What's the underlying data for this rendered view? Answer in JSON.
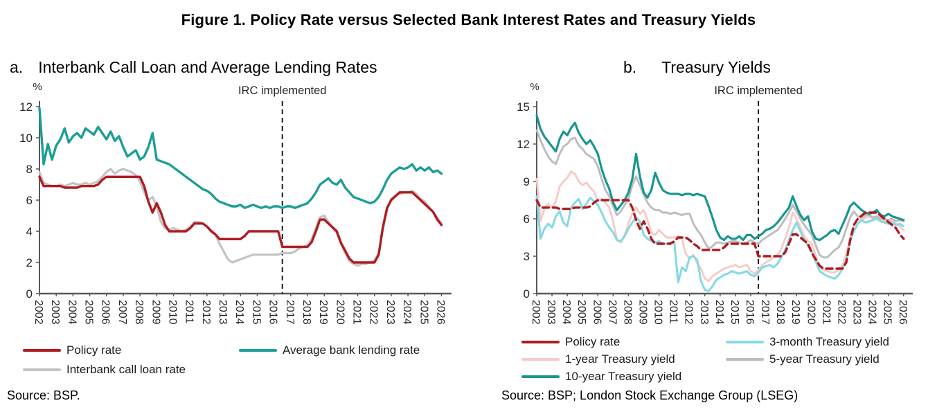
{
  "figure_title": "Figure 1. Policy Rate versus Selected Bank Interest Rates and Treasury Yields",
  "panel_a": {
    "index_label": "a.",
    "heading": "Interbank Call Loan and Average Lending Rates",
    "source": "Source: BSP."
  },
  "panel_b": {
    "index_label": "b.",
    "heading": "Treasury Yields",
    "source": "Source: BSP; London Stock Exchange Group (LSEG)"
  },
  "colors": {
    "policy_rate": "#B01C20",
    "avg_bank_lending": "#1C9E96",
    "interbank_call_loan": "#C3C3C3",
    "treasury_3m": "#84D9E2",
    "treasury_1y": "#F6CBC8",
    "treasury_5y": "#BDBDBD",
    "treasury_10y": "#189690",
    "irc_line": "#1A1A1A",
    "axis": "#595959"
  },
  "chart_data": [
    {
      "type": "line",
      "panel": "a",
      "title": "Interbank Call Loan and Average Lending Rates",
      "xlabel": "",
      "ylabel": "%",
      "percent_label": "%",
      "annotation": {
        "label": "IRC implemented",
        "x": 2016.5
      },
      "x_unit": "year",
      "x_start": 2002,
      "x_step": 0.25,
      "xlim": [
        2002,
        2026.6
      ],
      "ylim": [
        0,
        12
      ],
      "yticks": [
        0,
        2,
        4,
        6,
        8,
        10,
        12
      ],
      "xticks": [
        2002,
        2003,
        2004,
        2005,
        2006,
        2007,
        2008,
        2009,
        2010,
        2011,
        2012,
        2013,
        2014,
        2015,
        2016,
        2017,
        2018,
        2019,
        2020,
        2021,
        2022,
        2023,
        2024,
        2025,
        2026
      ],
      "grid": false,
      "legend_position": "bottom",
      "legend_columns": [
        [
          "Policy rate",
          "Interbank call loan rate"
        ],
        [
          "Average bank lending rate"
        ]
      ],
      "series": [
        {
          "name": "Interbank call loan rate",
          "color": "#C3C3C3",
          "width": 3.2,
          "values": [
            7.8,
            7.1,
            7.0,
            6.9,
            6.9,
            7.0,
            6.9,
            7.0,
            7.1,
            7.0,
            7.0,
            7.1,
            7.0,
            7.1,
            7.2,
            7.5,
            7.8,
            8.0,
            7.7,
            7.9,
            8.0,
            7.9,
            7.8,
            7.6,
            7.2,
            6.5,
            6.0,
            6.2,
            5.6,
            4.6,
            4.2,
            4.1,
            4.2,
            4.1,
            4.0,
            4.1,
            4.3,
            4.6,
            4.6,
            4.5,
            4.3,
            4.1,
            3.8,
            3.2,
            2.7,
            2.2,
            2.0,
            2.1,
            2.2,
            2.3,
            2.4,
            2.5,
            2.5,
            2.5,
            2.5,
            2.5,
            2.5,
            2.5,
            2.6,
            2.6,
            2.6,
            2.7,
            2.9,
            3.0,
            3.1,
            3.5,
            4.2,
            4.9,
            5.0,
            4.6,
            4.2,
            3.9,
            3.2,
            2.6,
            2.1,
            1.9,
            1.8,
            1.9,
            1.9,
            2.0,
            2.1,
            2.6,
            4.1,
            5.4,
            6.1,
            6.3,
            6.4,
            6.5,
            6.5,
            6.6,
            6.4,
            6.1,
            5.9,
            5.6,
            5.2,
            4.9,
            4.5
          ]
        },
        {
          "name": "Policy rate",
          "color": "#B01C20",
          "width": 3.4,
          "values": [
            7.5,
            6.9,
            6.9,
            6.9,
            6.9,
            6.9,
            6.8,
            6.8,
            6.8,
            6.8,
            6.9,
            6.9,
            6.9,
            6.9,
            7.0,
            7.3,
            7.5,
            7.5,
            7.5,
            7.5,
            7.5,
            7.5,
            7.5,
            7.5,
            7.5,
            6.9,
            5.9,
            5.2,
            5.8,
            5.2,
            4.4,
            4.0,
            4.0,
            4.0,
            4.0,
            4.0,
            4.2,
            4.5,
            4.5,
            4.5,
            4.3,
            4.0,
            3.8,
            3.5,
            3.5,
            3.5,
            3.5,
            3.5,
            3.5,
            3.7,
            4.0,
            4.0,
            4.0,
            4.0,
            4.0,
            4.0,
            4.0,
            4.0,
            3.0,
            3.0,
            3.0,
            3.0,
            3.0,
            3.0,
            3.0,
            3.3,
            4.0,
            4.75,
            4.75,
            4.5,
            4.25,
            4.0,
            3.25,
            2.75,
            2.25,
            2.0,
            2.0,
            2.0,
            2.0,
            2.0,
            2.0,
            2.5,
            4.25,
            5.5,
            6.0,
            6.25,
            6.5,
            6.5,
            6.5,
            6.5,
            6.25,
            6.0,
            5.75,
            5.5,
            5.25,
            4.75,
            4.4
          ]
        },
        {
          "name": "Average bank lending rate",
          "color": "#1C9E96",
          "width": 3.4,
          "values": [
            11.9,
            8.3,
            9.6,
            8.6,
            9.5,
            9.9,
            10.6,
            9.7,
            10.1,
            10.3,
            10.0,
            10.6,
            10.4,
            10.2,
            10.7,
            10.3,
            9.9,
            10.4,
            9.8,
            10.1,
            9.4,
            8.8,
            9.0,
            9.2,
            8.6,
            8.8,
            9.4,
            10.3,
            8.6,
            8.5,
            8.4,
            8.3,
            8.1,
            7.9,
            7.7,
            7.5,
            7.3,
            7.1,
            6.9,
            6.7,
            6.6,
            6.4,
            6.1,
            5.9,
            5.8,
            5.7,
            5.6,
            5.6,
            5.7,
            5.5,
            5.6,
            5.7,
            5.6,
            5.5,
            5.6,
            5.5,
            5.6,
            5.6,
            5.5,
            5.6,
            5.6,
            5.5,
            5.6,
            5.7,
            5.8,
            6.1,
            6.5,
            7.0,
            7.2,
            7.4,
            7.1,
            7.0,
            7.3,
            6.8,
            6.5,
            6.2,
            6.1,
            6.0,
            5.9,
            5.8,
            5.9,
            6.2,
            6.7,
            7.3,
            7.7,
            7.9,
            8.1,
            8.0,
            8.1,
            8.3,
            7.9,
            8.1,
            7.9,
            8.1,
            7.8,
            7.9,
            7.7
          ]
        }
      ]
    },
    {
      "type": "line",
      "panel": "b",
      "title": "Treasury Yields",
      "xlabel": "",
      "ylabel": "%",
      "percent_label": "%",
      "annotation": {
        "label": "IRC implemented",
        "x": 2016.5
      },
      "x_unit": "year",
      "x_start": 2002,
      "x_step": 0.25,
      "xlim": [
        2002,
        2026.6
      ],
      "ylim": [
        0,
        15
      ],
      "yticks": [
        0,
        3,
        6,
        9,
        12,
        15
      ],
      "xticks": [
        2002,
        2003,
        2004,
        2005,
        2006,
        2007,
        2008,
        2009,
        2010,
        2011,
        2012,
        2013,
        2014,
        2015,
        2016,
        2017,
        2018,
        2019,
        2020,
        2021,
        2022,
        2023,
        2024,
        2025,
        2026
      ],
      "grid": false,
      "legend_position": "bottom",
      "legend_columns": [
        [
          "Policy rate",
          "1-year Treasury yield",
          "10-year Treasury yield"
        ],
        [
          "3-month Treasury yield",
          "5-year Treasury yield"
        ]
      ],
      "series": [
        {
          "name": "1-year Treasury yield",
          "color": "#F6CBC8",
          "width": 3,
          "values": [
            9.2,
            5.8,
            6.8,
            7.2,
            6.9,
            7.4,
            8.6,
            9.0,
            9.3,
            9.8,
            9.6,
            9.0,
            8.7,
            8.9,
            8.5,
            8.2,
            7.4,
            7.6,
            7.3,
            6.9,
            5.8,
            4.3,
            4.1,
            4.7,
            5.6,
            6.4,
            6.9,
            6.4,
            6.7,
            5.9,
            4.9,
            4.7,
            5.1,
            4.8,
            4.5,
            4.5,
            4.5,
            4.6,
            4.4,
            3.2,
            2.8,
            3.1,
            2.4,
            2.0,
            1.2,
            1.0,
            1.4,
            1.6,
            1.8,
            2.0,
            2.1,
            2.2,
            2.3,
            2.1,
            2.2,
            2.3,
            1.8,
            1.6,
            1.9,
            2.3,
            2.5,
            2.7,
            2.9,
            3.1,
            3.6,
            4.4,
            5.3,
            6.5,
            6.0,
            5.3,
            4.6,
            4.2,
            4.0,
            3.1,
            2.1,
            1.9,
            1.8,
            1.7,
            1.7,
            1.9,
            2.3,
            3.1,
            4.5,
            5.5,
            6.0,
            5.9,
            6.1,
            6.2,
            6.0,
            6.1,
            5.9,
            5.8,
            5.7,
            5.8,
            5.6,
            5.4,
            5.1
          ]
        },
        {
          "name": "3-month Treasury yield",
          "color": "#84D9E2",
          "width": 3,
          "values": [
            7.8,
            4.4,
            5.2,
            5.6,
            5.3,
            6.2,
            6.6,
            5.7,
            5.4,
            6.9,
            7.3,
            7.6,
            6.8,
            7.2,
            7.7,
            7.4,
            7.1,
            6.5,
            5.8,
            5.3,
            4.9,
            4.3,
            4.2,
            4.6,
            5.2,
            5.7,
            6.1,
            5.8,
            4.7,
            4.4,
            4.2,
            4.1,
            4.2,
            4.0,
            4.0,
            4.1,
            4.1,
            0.9,
            2.1,
            1.8,
            2.9,
            3.0,
            2.7,
            1.0,
            0.3,
            0.2,
            0.6,
            1.1,
            1.3,
            1.5,
            1.6,
            1.8,
            1.7,
            1.6,
            1.7,
            1.8,
            1.5,
            1.4,
            1.7,
            2.1,
            2.2,
            2.3,
            2.1,
            2.4,
            2.9,
            3.5,
            4.3,
            5.1,
            5.7,
            5.0,
            4.3,
            3.8,
            3.4,
            2.6,
            1.8,
            1.6,
            1.4,
            1.3,
            1.2,
            1.5,
            2.0,
            2.7,
            4.2,
            5.0,
            5.6,
            5.9,
            5.7,
            5.8,
            5.9,
            6.0,
            5.8,
            5.7,
            5.6,
            5.7,
            5.5,
            5.6,
            5.4
          ]
        },
        {
          "name": "5-year Treasury yield",
          "color": "#BDBDBD",
          "width": 3,
          "values": [
            13.1,
            12.3,
            11.6,
            11.0,
            10.6,
            10.4,
            11.2,
            11.8,
            12.0,
            12.4,
            12.5,
            11.9,
            11.6,
            11.2,
            11.0,
            10.8,
            10.2,
            9.2,
            8.3,
            7.8,
            7.0,
            6.3,
            6.6,
            7.1,
            7.6,
            8.7,
            9.4,
            8.7,
            7.9,
            7.3,
            6.9,
            6.7,
            6.7,
            6.5,
            6.5,
            6.4,
            6.5,
            6.4,
            6.3,
            6.4,
            6.4,
            5.6,
            5.1,
            4.7,
            4.1,
            3.6,
            3.8,
            4.1,
            4.1,
            4.0,
            4.1,
            4.2,
            4.2,
            4.1,
            4.0,
            4.1,
            4.3,
            4.1,
            4.0,
            4.3,
            4.5,
            4.7,
            4.9,
            5.1,
            5.5,
            6.0,
            6.5,
            7.1,
            6.6,
            6.0,
            5.5,
            5.1,
            4.7,
            3.9,
            3.1,
            2.9,
            2.9,
            3.2,
            3.5,
            3.7,
            4.3,
            5.2,
            6.1,
            6.6,
            6.2,
            6.1,
            6.3,
            6.3,
            6.1,
            6.2,
            6.0,
            6.0,
            5.9,
            6.0,
            5.8,
            5.9,
            5.8
          ]
        },
        {
          "name": "10-year Treasury yield",
          "color": "#189690",
          "width": 3.2,
          "values": [
            14.3,
            13.2,
            12.6,
            12.2,
            11.8,
            11.4,
            12.4,
            13.0,
            12.7,
            13.3,
            13.7,
            12.9,
            12.4,
            12.0,
            12.3,
            11.8,
            11.2,
            10.0,
            9.1,
            8.4,
            7.3,
            6.7,
            7.1,
            7.5,
            8.1,
            9.2,
            11.2,
            9.4,
            8.1,
            7.7,
            8.3,
            9.7,
            8.9,
            8.3,
            8.1,
            8.0,
            8.0,
            8.0,
            7.9,
            8.0,
            8.0,
            7.9,
            8.0,
            7.9,
            7.8,
            7.0,
            6.1,
            5.1,
            4.5,
            4.3,
            4.6,
            4.4,
            4.4,
            4.6,
            4.3,
            4.7,
            4.7,
            4.4,
            4.6,
            4.8,
            5.1,
            5.2,
            5.4,
            5.7,
            6.1,
            6.5,
            6.9,
            7.8,
            7.0,
            6.3,
            5.9,
            6.2,
            5.0,
            4.4,
            4.3,
            4.5,
            4.7,
            5.0,
            5.1,
            4.8,
            5.5,
            6.2,
            7.0,
            7.3,
            7.0,
            6.7,
            6.5,
            6.4,
            6.5,
            6.7,
            6.3,
            6.2,
            6.4,
            6.2,
            6.1,
            6.0,
            5.9
          ]
        },
        {
          "name": "Policy rate",
          "color": "#B01C20",
          "width": 3.4,
          "dash": "9 6",
          "values": [
            7.5,
            6.9,
            6.9,
            6.9,
            6.9,
            6.9,
            6.8,
            6.8,
            6.8,
            6.8,
            6.9,
            6.9,
            6.9,
            6.9,
            7.0,
            7.3,
            7.5,
            7.5,
            7.5,
            7.5,
            7.5,
            7.5,
            7.5,
            7.5,
            7.5,
            6.9,
            5.9,
            5.2,
            5.8,
            5.2,
            4.4,
            4.0,
            4.0,
            4.0,
            4.0,
            4.0,
            4.2,
            4.5,
            4.5,
            4.5,
            4.3,
            4.0,
            3.8,
            3.5,
            3.5,
            3.5,
            3.5,
            3.5,
            3.5,
            3.7,
            4.0,
            4.0,
            4.0,
            4.0,
            4.0,
            4.0,
            4.0,
            4.0,
            3.0,
            3.0,
            3.0,
            3.0,
            3.0,
            3.0,
            3.0,
            3.3,
            4.0,
            4.75,
            4.75,
            4.5,
            4.25,
            4.0,
            3.25,
            2.75,
            2.25,
            2.0,
            2.0,
            2.0,
            2.0,
            2.0,
            2.0,
            2.5,
            4.25,
            5.5,
            6.0,
            6.25,
            6.5,
            6.5,
            6.5,
            6.5,
            6.25,
            6.0,
            5.75,
            5.5,
            5.25,
            4.75,
            4.4
          ]
        }
      ]
    }
  ]
}
